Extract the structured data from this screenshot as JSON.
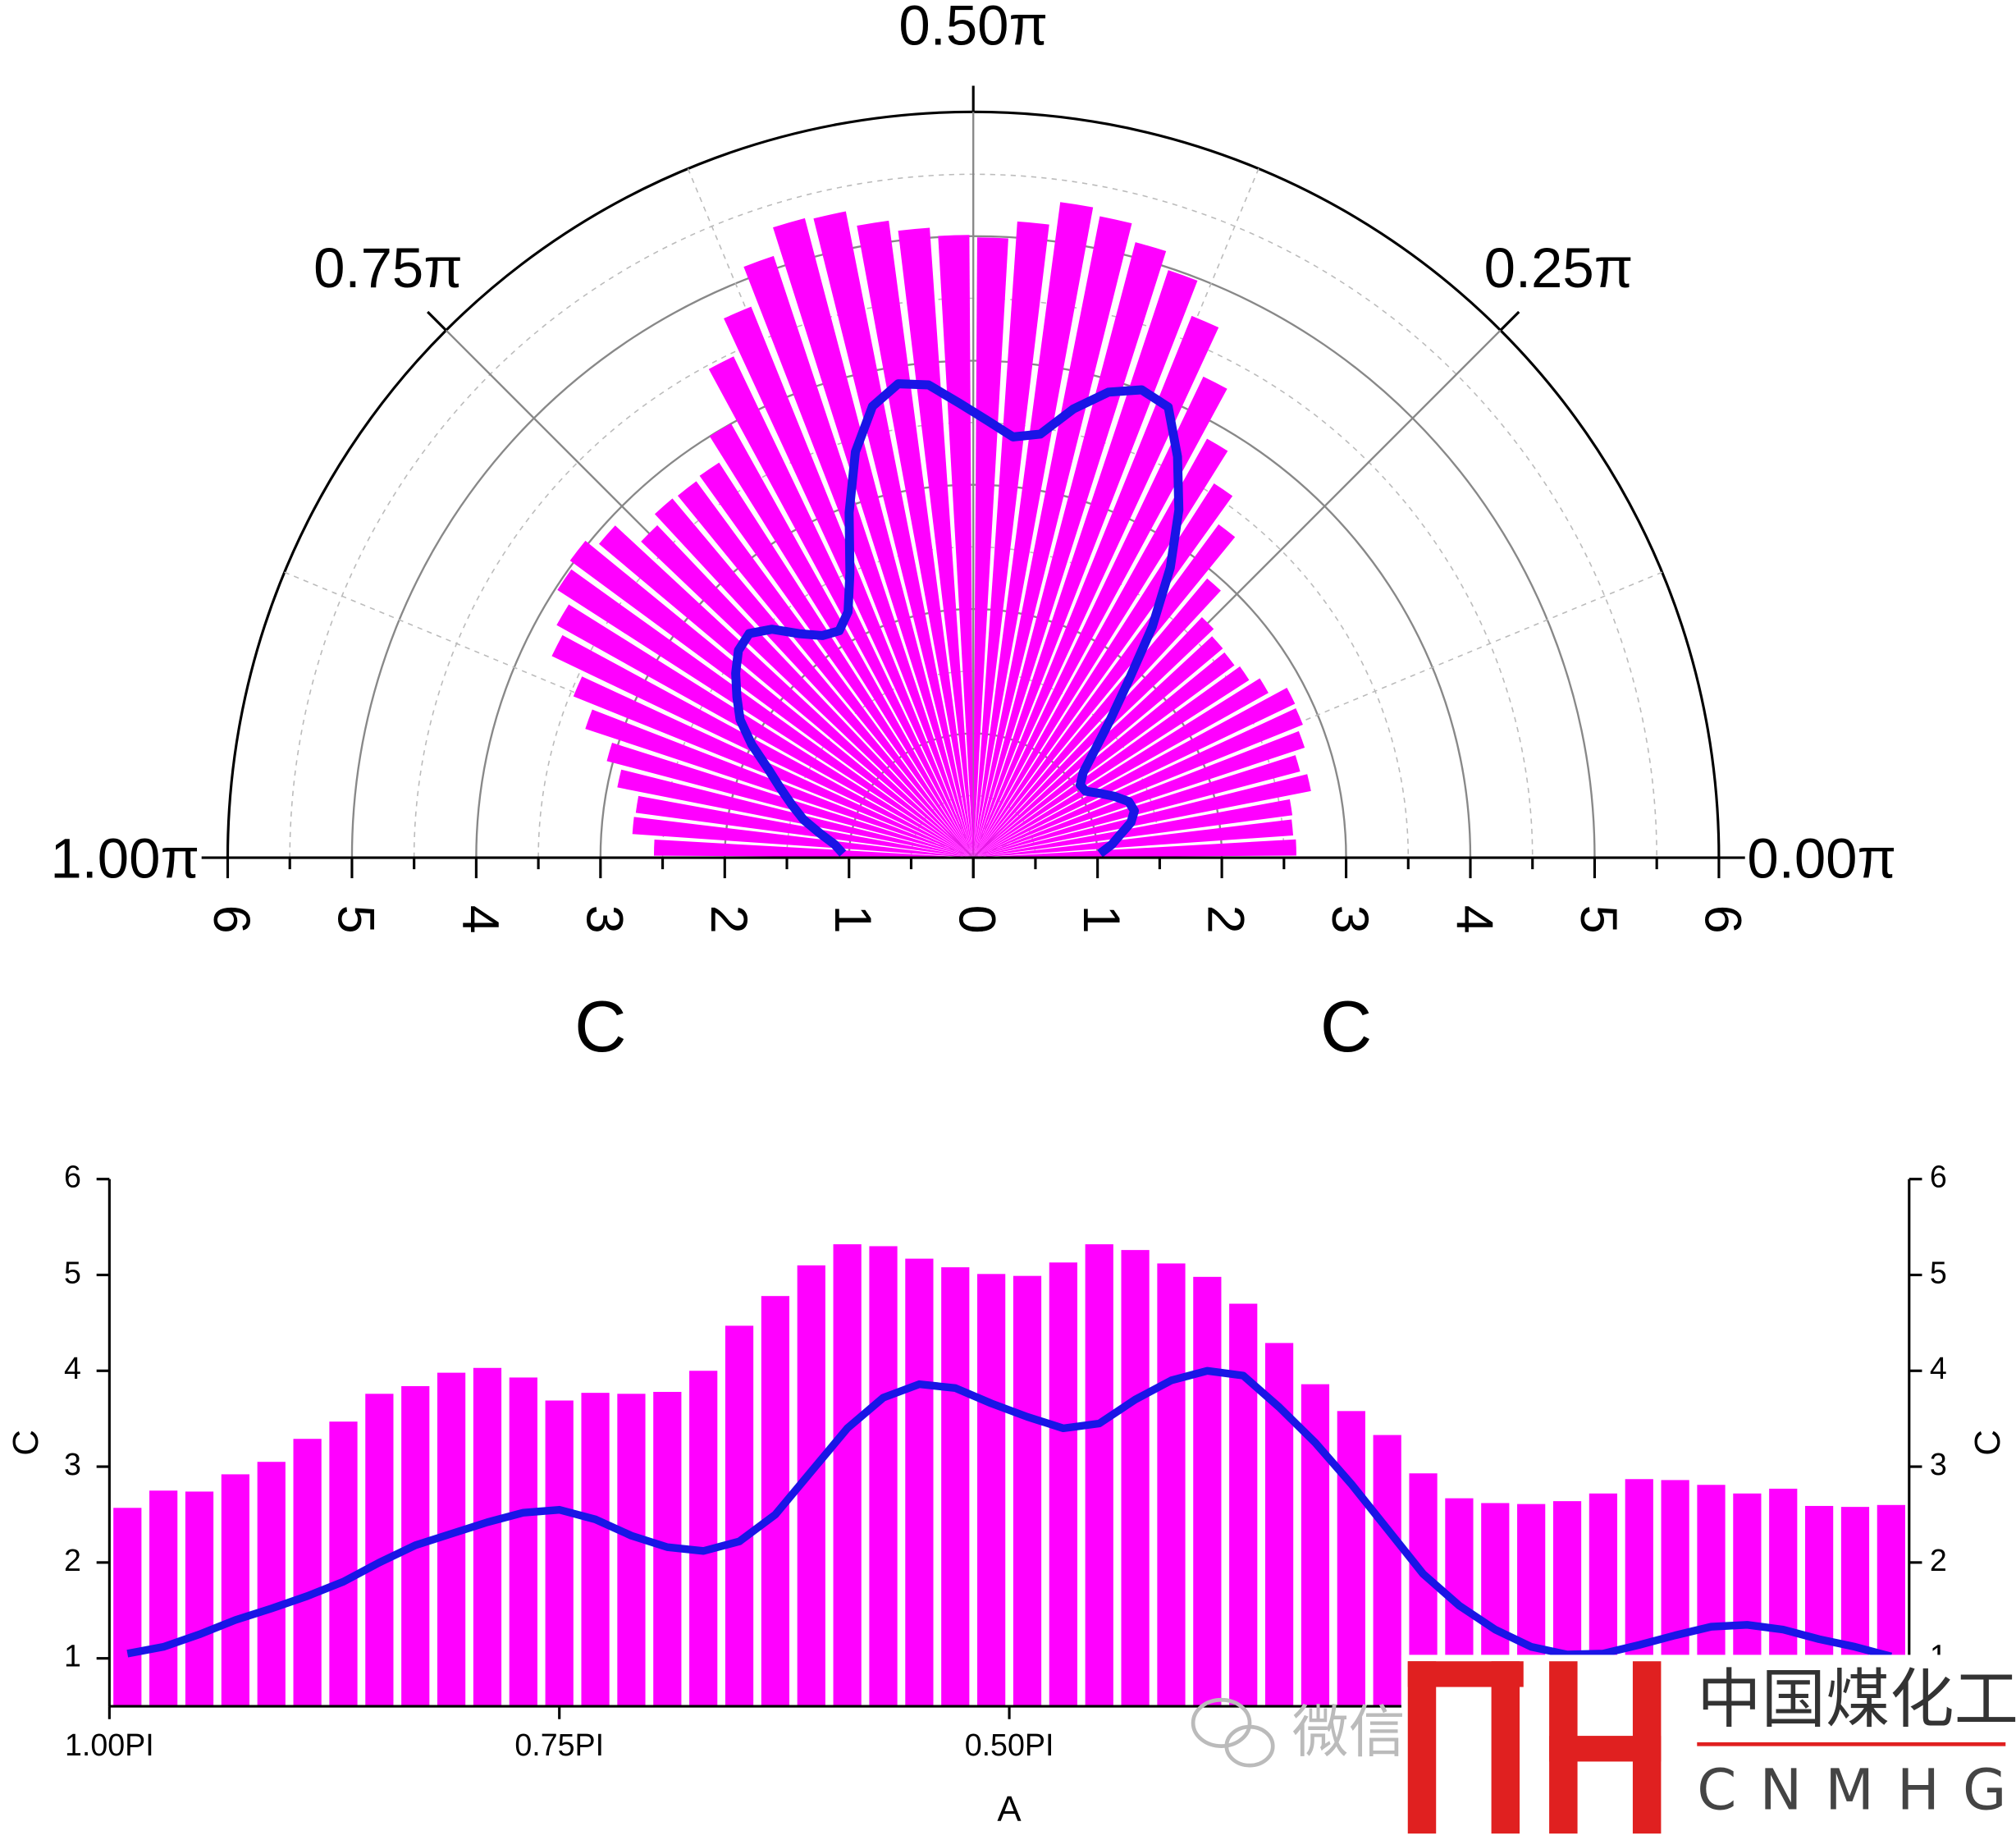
{
  "chart_data": [
    {
      "type": "polar_bar",
      "x": [
        0.99,
        0.97,
        0.95,
        0.93,
        0.91,
        0.89,
        0.87,
        0.85,
        0.83,
        0.81,
        0.79,
        0.77,
        0.75,
        0.73,
        0.71,
        0.69,
        0.67,
        0.65,
        0.63,
        0.61,
        0.59,
        0.57,
        0.55,
        0.53,
        0.51,
        0.49,
        0.47,
        0.45,
        0.43,
        0.41,
        0.39,
        0.37,
        0.35,
        0.33,
        0.31,
        0.29,
        0.27,
        0.25,
        0.23,
        0.21,
        0.19,
        0.17,
        0.15,
        0.13,
        0.11,
        0.09,
        0.07,
        0.05,
        0.03,
        0.01
      ],
      "series": [
        {
          "color": "#ff00ff",
          "values": [
            2.57,
            2.75,
            2.74,
            2.92,
            3.05,
            3.29,
            3.47,
            3.76,
            3.84,
            3.98,
            4.03,
            3.93,
            3.69,
            3.77,
            3.76,
            3.78,
            4.0,
            4.47,
            4.78,
            5.1,
            5.32,
            5.3,
            5.17,
            5.08,
            5.01,
            4.99,
            5.13,
            5.32,
            5.26,
            5.12,
            4.98,
            4.7,
            4.29,
            3.86,
            3.58,
            3.33,
            2.93,
            2.67,
            2.62,
            2.61,
            2.64,
            2.72,
            2.87,
            2.86,
            2.81,
            2.72,
            2.77,
            2.59,
            2.58,
            2.6
          ]
        },
        {
          "type": "line",
          "color": "#1a14e6",
          "values": [
            1.05,
            1.12,
            1.25,
            1.4,
            1.52,
            1.65,
            1.8,
            2.0,
            2.18,
            2.3,
            2.42,
            2.52,
            2.55,
            2.45,
            2.28,
            2.16,
            2.12,
            2.22,
            2.5,
            2.95,
            3.4,
            3.72,
            3.86,
            3.82,
            3.66,
            3.52,
            3.4,
            3.45,
            3.7,
            3.9,
            4.0,
            3.95,
            3.62,
            3.25,
            2.82,
            2.35,
            1.88,
            1.55,
            1.3,
            1.12,
            1.04,
            1.05,
            1.14,
            1.24,
            1.33,
            1.35,
            1.3,
            1.2,
            1.12,
            1.02
          ]
        }
      ],
      "xlim": [
        0,
        1
      ],
      "xticks": [
        {
          "value": 0,
          "label": "0.00π"
        },
        {
          "value": 0.25,
          "label": "0.25π"
        },
        {
          "value": 0.5,
          "label": "0.50π"
        },
        {
          "value": 0.75,
          "label": "0.75π"
        },
        {
          "value": 1,
          "label": "1.00π"
        }
      ],
      "rlim": [
        0,
        6
      ],
      "rticks": [
        0,
        1,
        2,
        3,
        4,
        5,
        6
      ],
      "r_label": "C",
      "grid": true
    },
    {
      "type": "bar",
      "x": [
        0.99,
        0.97,
        0.95,
        0.93,
        0.91,
        0.89,
        0.87,
        0.85,
        0.83,
        0.81,
        0.79,
        0.77,
        0.75,
        0.73,
        0.71,
        0.69,
        0.67,
        0.65,
        0.63,
        0.61,
        0.59,
        0.57,
        0.55,
        0.53,
        0.51,
        0.49,
        0.47,
        0.45,
        0.43,
        0.41,
        0.39,
        0.37,
        0.35,
        0.33,
        0.31,
        0.29,
        0.27,
        0.25,
        0.23,
        0.21,
        0.19,
        0.17,
        0.15,
        0.13,
        0.11,
        0.09,
        0.07,
        0.05,
        0.03,
        0.01
      ],
      "series": [
        {
          "color": "#ff00ff",
          "values": [
            2.57,
            2.75,
            2.74,
            2.92,
            3.05,
            3.29,
            3.47,
            3.76,
            3.84,
            3.98,
            4.03,
            3.93,
            3.69,
            3.77,
            3.76,
            3.78,
            4.0,
            4.47,
            4.78,
            5.1,
            5.32,
            5.3,
            5.17,
            5.08,
            5.01,
            4.99,
            5.13,
            5.32,
            5.26,
            5.12,
            4.98,
            4.7,
            4.29,
            3.86,
            3.58,
            3.33,
            2.93,
            2.67,
            2.62,
            2.61,
            2.64,
            2.72,
            2.87,
            2.86,
            2.81,
            2.72,
            2.77,
            2.59,
            2.58,
            2.6
          ]
        },
        {
          "type": "line",
          "color": "#1a14e6",
          "values": [
            1.05,
            1.12,
            1.25,
            1.4,
            1.52,
            1.65,
            1.8,
            2.0,
            2.18,
            2.3,
            2.42,
            2.52,
            2.55,
            2.45,
            2.28,
            2.16,
            2.12,
            2.22,
            2.5,
            2.95,
            3.4,
            3.72,
            3.86,
            3.82,
            3.66,
            3.52,
            3.4,
            3.45,
            3.7,
            3.9,
            4.0,
            3.95,
            3.62,
            3.25,
            2.82,
            2.35,
            1.88,
            1.55,
            1.3,
            1.12,
            1.04,
            1.05,
            1.14,
            1.24,
            1.33,
            1.35,
            1.3,
            1.2,
            1.12,
            1.02
          ]
        }
      ],
      "xlim": [
        1,
        0
      ],
      "xticks": [
        {
          "value": 1,
          "label": "1.00PI"
        },
        {
          "value": 0.75,
          "label": "0.75PI"
        },
        {
          "value": 0.5,
          "label": "0.50PI"
        }
      ],
      "ylim": [
        0.5,
        6
      ],
      "yticks": [
        1,
        2,
        3,
        4,
        5,
        6
      ],
      "y2lim": [
        0.5,
        6
      ],
      "y2ticks": [
        1,
        2,
        3,
        4,
        5,
        6
      ],
      "x_label": "A",
      "y_label": "C",
      "y2_label": "C"
    }
  ],
  "watermark": {
    "wechat": "微信",
    "name": "中国煤化工",
    "code": "CNMHG"
  }
}
